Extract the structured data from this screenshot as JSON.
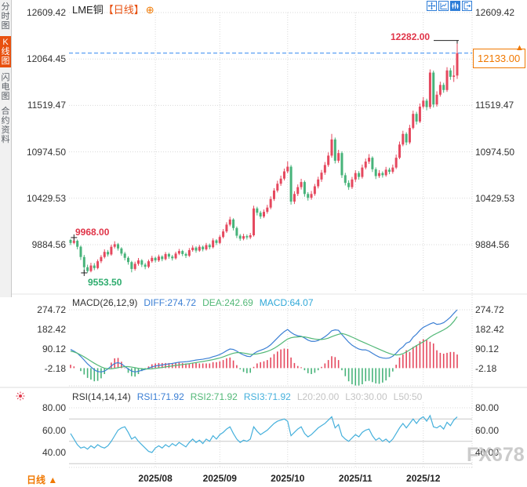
{
  "app": {
    "sidebar": {
      "tabs": [
        {
          "label": "分时图",
          "active": false
        },
        {
          "label": "K线图",
          "active": true
        },
        {
          "label": "闪电图",
          "active": false
        },
        {
          "label": "合约资料",
          "active": false
        }
      ]
    },
    "title": {
      "symbol": "LME铜",
      "period": "【日线】",
      "add_icon": "⊕"
    },
    "toolbar_icons": [
      "crosshair-icon",
      "axis-chart-icon",
      "candle-chart-icon",
      "exit-icon"
    ],
    "watermark": "FX678",
    "period_label": "日线",
    "period_arrow": "▲"
  },
  "chart_data": {
    "type": "candlestick",
    "title": "LME铜 日线",
    "price_axis": {
      "ticks": [
        12609.42,
        12064.45,
        11519.47,
        10974.5,
        10429.53,
        9884.56
      ]
    },
    "months": [
      {
        "label": "2025/08",
        "day": 25
      },
      {
        "label": "2025/09",
        "day": 44
      },
      {
        "label": "2025/10",
        "day": 64
      },
      {
        "label": "2025/11",
        "day": 84
      },
      {
        "label": "2025/12",
        "day": 104
      }
    ],
    "annotations": {
      "first_high_label": "9968.00",
      "first_high_value": 9968,
      "first_high_day": 1,
      "low_label": "9553.50",
      "low_value": 9553.5,
      "low_day": 4,
      "high_label": "12282.00",
      "high_value": 12282,
      "last_price": "12133.00",
      "last_price_value": 12133
    },
    "candles": [
      [
        9940,
        9952,
        9880,
        9905
      ],
      [
        9905,
        9968,
        9890,
        9930
      ],
      [
        9930,
        9945,
        9830,
        9860
      ],
      [
        9860,
        9875,
        9705,
        9740
      ],
      [
        9740,
        9765,
        9553.5,
        9620
      ],
      [
        9620,
        9650,
        9556,
        9575
      ],
      [
        9575,
        9672,
        9560,
        9640
      ],
      [
        9640,
        9668,
        9585,
        9610
      ],
      [
        9610,
        9712,
        9595,
        9690
      ],
      [
        9690,
        9762,
        9668,
        9740
      ],
      [
        9740,
        9830,
        9722,
        9800
      ],
      [
        9800,
        9822,
        9745,
        9770
      ],
      [
        9770,
        9885,
        9755,
        9860
      ],
      [
        9860,
        9925,
        9840,
        9890
      ],
      [
        9890,
        9905,
        9815,
        9840
      ],
      [
        9840,
        9855,
        9755,
        9780
      ],
      [
        9780,
        9800,
        9700,
        9730
      ],
      [
        9730,
        9748,
        9650,
        9680
      ],
      [
        9680,
        9695,
        9560,
        9600
      ],
      [
        9600,
        9685,
        9580,
        9660
      ],
      [
        9660,
        9728,
        9638,
        9700
      ],
      [
        9700,
        9715,
        9622,
        9650
      ],
      [
        9650,
        9670,
        9596,
        9625
      ],
      [
        9625,
        9710,
        9608,
        9690
      ],
      [
        9690,
        9755,
        9672,
        9730
      ],
      [
        9730,
        9745,
        9676,
        9700
      ],
      [
        9700,
        9768,
        9682,
        9745
      ],
      [
        9745,
        9760,
        9690,
        9715
      ],
      [
        9715,
        9798,
        9700,
        9775
      ],
      [
        9775,
        9790,
        9720,
        9745
      ],
      [
        9745,
        9765,
        9698,
        9725
      ],
      [
        9725,
        9802,
        9710,
        9780
      ],
      [
        9780,
        9835,
        9762,
        9810
      ],
      [
        9810,
        9824,
        9750,
        9775
      ],
      [
        9775,
        9792,
        9728,
        9755
      ],
      [
        9755,
        9845,
        9740,
        9820
      ],
      [
        9820,
        9878,
        9802,
        9850
      ],
      [
        9850,
        9865,
        9790,
        9815
      ],
      [
        9815,
        9882,
        9800,
        9860
      ],
      [
        9860,
        9875,
        9806,
        9830
      ],
      [
        9830,
        9905,
        9815,
        9880
      ],
      [
        9880,
        9898,
        9830,
        9855
      ],
      [
        9855,
        9960,
        9840,
        9935
      ],
      [
        9935,
        9950,
        9880,
        9905
      ],
      [
        9905,
        9998,
        9890,
        9975
      ],
      [
        9975,
        10068,
        9958,
        10040
      ],
      [
        10040,
        10148,
        10022,
        10120
      ],
      [
        10120,
        10212,
        10100,
        10180
      ],
      [
        10180,
        10195,
        10052,
        10080
      ],
      [
        10080,
        10098,
        9962,
        9990
      ],
      [
        9990,
        10010,
        9930,
        9955
      ],
      [
        9955,
        10012,
        9936,
        9985
      ],
      [
        9985,
        10005,
        9945,
        9970
      ],
      [
        9970,
        10022,
        9950,
        9995
      ],
      [
        9995,
        10342,
        9980,
        10310
      ],
      [
        10310,
        10330,
        10228,
        10260
      ],
      [
        10260,
        10282,
        10188,
        10215
      ],
      [
        10215,
        10298,
        10196,
        10270
      ],
      [
        10270,
        10352,
        10248,
        10320
      ],
      [
        10320,
        10452,
        10300,
        10420
      ],
      [
        10420,
        10548,
        10398,
        10520
      ],
      [
        10520,
        10635,
        10498,
        10600
      ],
      [
        10600,
        10695,
        10575,
        10660
      ],
      [
        10660,
        10778,
        10638,
        10745
      ],
      [
        10745,
        10862,
        10722,
        10800
      ],
      [
        10800,
        10820,
        10355,
        10390
      ],
      [
        10390,
        10512,
        10362,
        10480
      ],
      [
        10480,
        10592,
        10455,
        10560
      ],
      [
        10560,
        10658,
        10532,
        10620
      ],
      [
        10620,
        10638,
        10448,
        10480
      ],
      [
        10480,
        10502,
        10402,
        10435
      ],
      [
        10435,
        10515,
        10412,
        10480
      ],
      [
        10480,
        10598,
        10458,
        10570
      ],
      [
        10570,
        10682,
        10545,
        10650
      ],
      [
        10650,
        10762,
        10622,
        10730
      ],
      [
        10730,
        10855,
        10705,
        10820
      ],
      [
        10820,
        10968,
        10798,
        10930
      ],
      [
        10930,
        11185,
        10905,
        11120
      ],
      [
        11120,
        11142,
        10838,
        10870
      ],
      [
        10870,
        10998,
        10845,
        10960
      ],
      [
        10960,
        10980,
        10668,
        10700
      ],
      [
        10700,
        10728,
        10580,
        10610
      ],
      [
        10610,
        10640,
        10528,
        10560
      ],
      [
        10560,
        10680,
        10538,
        10650
      ],
      [
        10650,
        10758,
        10622,
        10725
      ],
      [
        10725,
        10748,
        10648,
        10680
      ],
      [
        10680,
        10825,
        10660,
        10790
      ],
      [
        10790,
        10895,
        10768,
        10860
      ],
      [
        10860,
        10948,
        10832,
        10905
      ],
      [
        10905,
        10922,
        10738,
        10770
      ],
      [
        10770,
        10792,
        10655,
        10690
      ],
      [
        10690,
        10760,
        10668,
        10725
      ],
      [
        10725,
        10745,
        10672,
        10700
      ],
      [
        10700,
        10798,
        10682,
        10765
      ],
      [
        10765,
        10788,
        10712,
        10740
      ],
      [
        10740,
        10825,
        10718,
        10790
      ],
      [
        10790,
        10942,
        10772,
        10905
      ],
      [
        10905,
        11095,
        10888,
        11060
      ],
      [
        11060,
        11222,
        11040,
        11185
      ],
      [
        11185,
        11205,
        11052,
        11085
      ],
      [
        11085,
        11292,
        11065,
        11255
      ],
      [
        11255,
        11458,
        11238,
        11420
      ],
      [
        11420,
        11445,
        11295,
        11330
      ],
      [
        11330,
        11542,
        11312,
        11505
      ],
      [
        11505,
        11618,
        11482,
        11575
      ],
      [
        11575,
        11598,
        11462,
        11500
      ],
      [
        11500,
        11942,
        11478,
        11905
      ],
      [
        11905,
        11928,
        11495,
        11530
      ],
      [
        11530,
        11685,
        11505,
        11645
      ],
      [
        11645,
        11798,
        11622,
        11760
      ],
      [
        11760,
        11785,
        11668,
        11700
      ],
      [
        11700,
        11968,
        11678,
        11930
      ],
      [
        11930,
        11958,
        11820,
        11855
      ],
      [
        11855,
        11990,
        11795,
        11870
      ],
      [
        11870,
        12282,
        11830,
        12133
      ]
    ],
    "macd": {
      "params": "MACD(26,12,9)",
      "diff_label": "DIFF:274.72",
      "dea_label": "DEA:242.69",
      "macd_label": "MACD:64.07",
      "ticks": [
        274.72,
        182.42,
        90.12,
        -2.18
      ],
      "diff": [
        88,
        80,
        70,
        55,
        38,
        20,
        6,
        -8,
        -16,
        -18,
        -14,
        -4,
        10,
        22,
        26,
        20,
        8,
        -4,
        -14,
        -18,
        -15,
        -10,
        -6,
        0,
        6,
        10,
        13,
        15,
        18,
        20,
        22,
        25,
        28,
        29,
        30,
        32,
        35,
        38,
        40,
        42,
        45,
        48,
        54,
        58,
        64,
        72,
        82,
        90,
        88,
        80,
        70,
        62,
        56,
        54,
        68,
        78,
        84,
        90,
        98,
        110,
        126,
        142,
        158,
        172,
        182,
        168,
        158,
        152,
        150,
        142,
        132,
        126,
        126,
        130,
        138,
        148,
        160,
        176,
        180,
        178,
        158,
        140,
        122,
        108,
        98,
        90,
        86,
        86,
        80,
        70,
        60,
        52,
        48,
        46,
        48,
        56,
        70,
        88,
        100,
        118,
        124,
        146,
        160,
        178,
        192,
        200,
        208,
        214,
        206,
        208,
        214,
        226,
        240,
        258,
        274.72
      ],
      "dea": [
        80,
        76,
        70,
        62,
        53,
        43,
        33,
        23,
        14,
        6,
        0,
        -3,
        -3,
        -1,
        2,
        5,
        7,
        7,
        5,
        2,
        -1,
        -3,
        -4,
        -4,
        -3,
        -1,
        1,
        3,
        6,
        8,
        10,
        13,
        15,
        17,
        19,
        21,
        24,
        26,
        29,
        31,
        34,
        37,
        40,
        44,
        48,
        53,
        59,
        65,
        70,
        73,
        73,
        71,
        68,
        65,
        65,
        67,
        70,
        74,
        79,
        85,
        93,
        103,
        114,
        126,
        137,
        143,
        146,
        147,
        148,
        147,
        144,
        140,
        137,
        135,
        135,
        137,
        141,
        148,
        154,
        159,
        163,
        159,
        153,
        146,
        139,
        131,
        124,
        117,
        110,
        103,
        96,
        89,
        82,
        75,
        69,
        64,
        62,
        63,
        68,
        76,
        86,
        96,
        106,
        115,
        124,
        134,
        146,
        156,
        164,
        172,
        180,
        190,
        202,
        220,
        242.69
      ]
    },
    "rsi": {
      "params": "RSI(14,14,14)",
      "rsi1_label": "RSI1:71.92",
      "rsi2_label": "RSI2:71.92",
      "rsi3_label": "RSI3:71.92",
      "l20_label": "L20:20.00",
      "l30_label": "L30:30.00",
      "l50_label": "L50:50",
      "ticks": [
        80,
        60,
        40
      ],
      "levels": [
        70,
        50,
        30
      ],
      "values": [
        57,
        52,
        47,
        44,
        45,
        43,
        46,
        44,
        47,
        45,
        44,
        46,
        50,
        55,
        60,
        62,
        63,
        58,
        52,
        54,
        50,
        47,
        44,
        41,
        40,
        44,
        46,
        44,
        47,
        45,
        48,
        46,
        49,
        47,
        45,
        49,
        52,
        49,
        51,
        48,
        52,
        50,
        55,
        52,
        56,
        58,
        61,
        63,
        57,
        52,
        49,
        51,
        50,
        52,
        63,
        59,
        56,
        58,
        60,
        63,
        66,
        68,
        69,
        70,
        68,
        55,
        58,
        61,
        63,
        57,
        54,
        56,
        59,
        62,
        64,
        66,
        69,
        72,
        62,
        65,
        55,
        52,
        50,
        53,
        56,
        54,
        58,
        60,
        61,
        55,
        51,
        53,
        50,
        52,
        49,
        52,
        57,
        62,
        66,
        62,
        66,
        70,
        66,
        70,
        72,
        68,
        73,
        63,
        62,
        64,
        61,
        67,
        64,
        69,
        71.92
      ]
    },
    "colors": {
      "up": "#e5485e",
      "down": "#47b37a",
      "diff_line": "#3b7fd4",
      "dea_line": "#52b877",
      "rsi_line": "#45b0dc",
      "dashed_line": "#2e86f0",
      "grid": "#d9d9d9",
      "level_line": "#c8c8c8",
      "accent_orange": "#f07800",
      "tab_active": "#e8500f",
      "annotation_red": "#e03448",
      "annotation_green": "#2eac6e",
      "icon_blue": "#2f7ed8"
    }
  }
}
